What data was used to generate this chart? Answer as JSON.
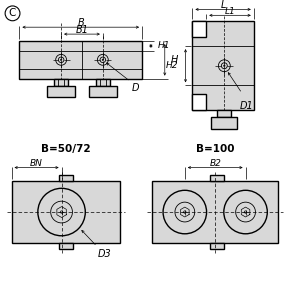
{
  "bg_color": "#ffffff",
  "lc": "#000000",
  "title_symbol": "C",
  "labels": {
    "B": "B",
    "B1": "B1",
    "H1": "H1",
    "H": "H",
    "D": "D",
    "L": "L",
    "L1": "L1",
    "H2": "H2",
    "D1": "D1",
    "B50": "B=50/72",
    "BN": "BN",
    "D3": "D3",
    "B100": "B=100",
    "B2": "B2"
  },
  "gray": "#d8d8d8",
  "white": "#ffffff"
}
